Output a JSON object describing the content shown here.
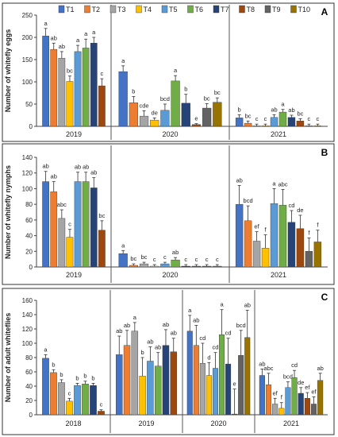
{
  "legend": [
    {
      "label": "T1",
      "color": "#4472C4"
    },
    {
      "label": "T2",
      "color": "#ED7D31"
    },
    {
      "label": "T3",
      "color": "#A5A5A5"
    },
    {
      "label": "T4",
      "color": "#FFC000"
    },
    {
      "label": "T5",
      "color": "#5B9BD5"
    },
    {
      "label": "T6",
      "color": "#70AD47"
    },
    {
      "label": "T7",
      "color": "#264478"
    },
    {
      "label": "T8",
      "color": "#9E480E"
    },
    {
      "label": "T9",
      "color": "#636363"
    },
    {
      "label": "T10",
      "color": "#997300"
    }
  ],
  "chart_data": [
    {
      "type": "bar",
      "panel_letter": "A",
      "ylabel": "Number of whitefly eggs",
      "ylim": [
        0,
        250
      ],
      "yticks": [
        0,
        50,
        100,
        150,
        200,
        250
      ],
      "groups": [
        "2019",
        "2020",
        "2021"
      ],
      "series_names": [
        "T1",
        "T2",
        "T3",
        "T4",
        "T5",
        "T6",
        "T7",
        "T8",
        "T9",
        "T10"
      ],
      "values": [
        [
          203,
          173,
          153,
          101,
          168,
          176,
          187,
          91,
          null,
          null
        ],
        [
          123,
          53,
          23,
          14,
          36,
          102,
          52,
          4,
          41,
          54
        ],
        [
          19,
          7,
          1,
          1,
          20,
          32,
          20,
          12,
          1,
          1
        ]
      ],
      "errors": [
        [
          17,
          14,
          15,
          12,
          14,
          20,
          13,
          16,
          null,
          null
        ],
        [
          13,
          14,
          12,
          5,
          14,
          12,
          20,
          2,
          10,
          10
        ],
        [
          7,
          5,
          4,
          4,
          6,
          6,
          5,
          5,
          4,
          4
        ]
      ],
      "letters": [
        [
          "a",
          "ab",
          "ab",
          "bc",
          "a",
          "a",
          "a",
          "c",
          null,
          null
        ],
        [
          "a",
          "b",
          "cde",
          "de",
          "bcd",
          "a",
          "b",
          "e",
          "bc",
          "bc"
        ],
        [
          "b",
          "bc",
          "c",
          "c",
          "ab",
          "a",
          "ab",
          "bc",
          "c",
          "c"
        ]
      ]
    },
    {
      "type": "bar",
      "panel_letter": "B",
      "ylabel": "Number of whitefly nymphs",
      "ylim": [
        0,
        140
      ],
      "yticks": [
        0,
        20,
        40,
        60,
        80,
        100,
        120,
        140
      ],
      "groups": [
        "2019",
        "2020",
        "2021"
      ],
      "series_names": [
        "T1",
        "T2",
        "T3",
        "T4",
        "T5",
        "T6",
        "T7",
        "T8",
        "T9",
        "T10"
      ],
      "values": [
        [
          109,
          96,
          62,
          38,
          109,
          109,
          101,
          47,
          null,
          null
        ],
        [
          17,
          2,
          4,
          1,
          4,
          9,
          1,
          1,
          1,
          1
        ],
        [
          80,
          59,
          33,
          24,
          81,
          79,
          57,
          49,
          20,
          32
        ]
      ],
      "errors": [
        [
          13,
          13,
          11,
          10,
          12,
          12,
          13,
          12,
          null,
          null
        ],
        [
          4,
          2,
          2,
          2,
          2,
          3,
          2,
          2,
          2,
          2
        ],
        [
          24,
          19,
          12,
          17,
          19,
          20,
          15,
          17,
          17,
          15
        ]
      ],
      "letters": [
        [
          "ab",
          "ab",
          "abc",
          "c",
          "ab",
          "ab",
          "ab",
          "bc",
          null,
          null
        ],
        [
          "a",
          "bc",
          "bc",
          "c",
          "c",
          "ab",
          "c",
          "c",
          "c",
          "c"
        ],
        [
          "ab",
          "bcd",
          "ef",
          "f",
          "a",
          "abc",
          "cd",
          "de",
          "f",
          "f"
        ]
      ]
    },
    {
      "type": "bar",
      "panel_letter": "C",
      "ylabel": "Number of adult whiteflies",
      "ylim": [
        0,
        160
      ],
      "yticks": [
        0,
        20,
        40,
        60,
        80,
        100,
        120,
        140,
        160
      ],
      "groups": [
        "2018",
        "2019",
        "2020",
        "2021"
      ],
      "series_names": [
        "T1",
        "T2",
        "T3",
        "T4",
        "T5",
        "T6",
        "T7",
        "T8",
        "T9",
        "T10"
      ],
      "values": [
        [
          79,
          59,
          45,
          19,
          41,
          43,
          41,
          5,
          null,
          null
        ],
        [
          84,
          97,
          117,
          54,
          75,
          68,
          97,
          88,
          null,
          null
        ],
        [
          117,
          97,
          72,
          55,
          65,
          112,
          71,
          1,
          83,
          108
        ],
        [
          55,
          42,
          15,
          9,
          38,
          52,
          30,
          23,
          15,
          48
        ]
      ],
      "errors": [
        [
          5,
          4,
          4,
          4,
          3,
          4,
          3,
          2,
          null,
          null
        ],
        [
          26,
          21,
          12,
          26,
          20,
          19,
          22,
          19,
          null,
          null
        ],
        [
          22,
          28,
          28,
          18,
          22,
          35,
          36,
          35,
          35,
          38
        ]
      ],
      "errors_2021": [
        9,
        16,
        8,
        8,
        8,
        10,
        8,
        8,
        10,
        10
      ],
      "letters": [
        [
          "a",
          "b",
          "b",
          "c",
          "b",
          "b",
          "b",
          "c",
          null,
          null
        ],
        [
          "ab",
          "ab",
          "a",
          "b",
          "ab",
          "ab",
          "ab",
          "ab",
          null,
          null
        ],
        [
          "a",
          "ab",
          "cd",
          "d",
          "cd",
          "a",
          "cd",
          "e",
          "bcd",
          "ab"
        ],
        [
          "ab",
          "abc",
          "ef",
          "f",
          "bcd",
          "cd",
          "de",
          "ef",
          "ef",
          "ab"
        ]
      ]
    }
  ]
}
